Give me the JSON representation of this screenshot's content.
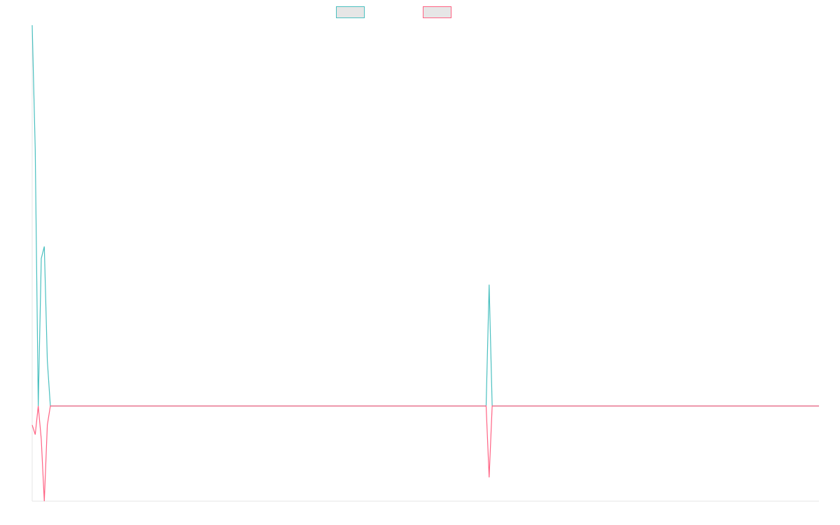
{
  "chart_data": {
    "type": "line",
    "x": [
      0,
      1,
      2,
      3,
      4,
      5,
      6,
      7,
      150,
      151,
      152,
      260
    ],
    "series": [
      {
        "color": "#4bc0c0",
        "values": [
          80,
          54,
          0,
          31,
          33.5,
          9.5,
          0,
          0,
          0,
          25.5,
          0,
          0
        ]
      },
      {
        "color": "#ff6384",
        "values": [
          -4,
          -6,
          0,
          -7,
          -20,
          -4,
          0,
          0,
          0,
          -15,
          0,
          0
        ]
      }
    ],
    "xlim": [
      0,
      260
    ],
    "ylim": [
      -20,
      80
    ]
  }
}
